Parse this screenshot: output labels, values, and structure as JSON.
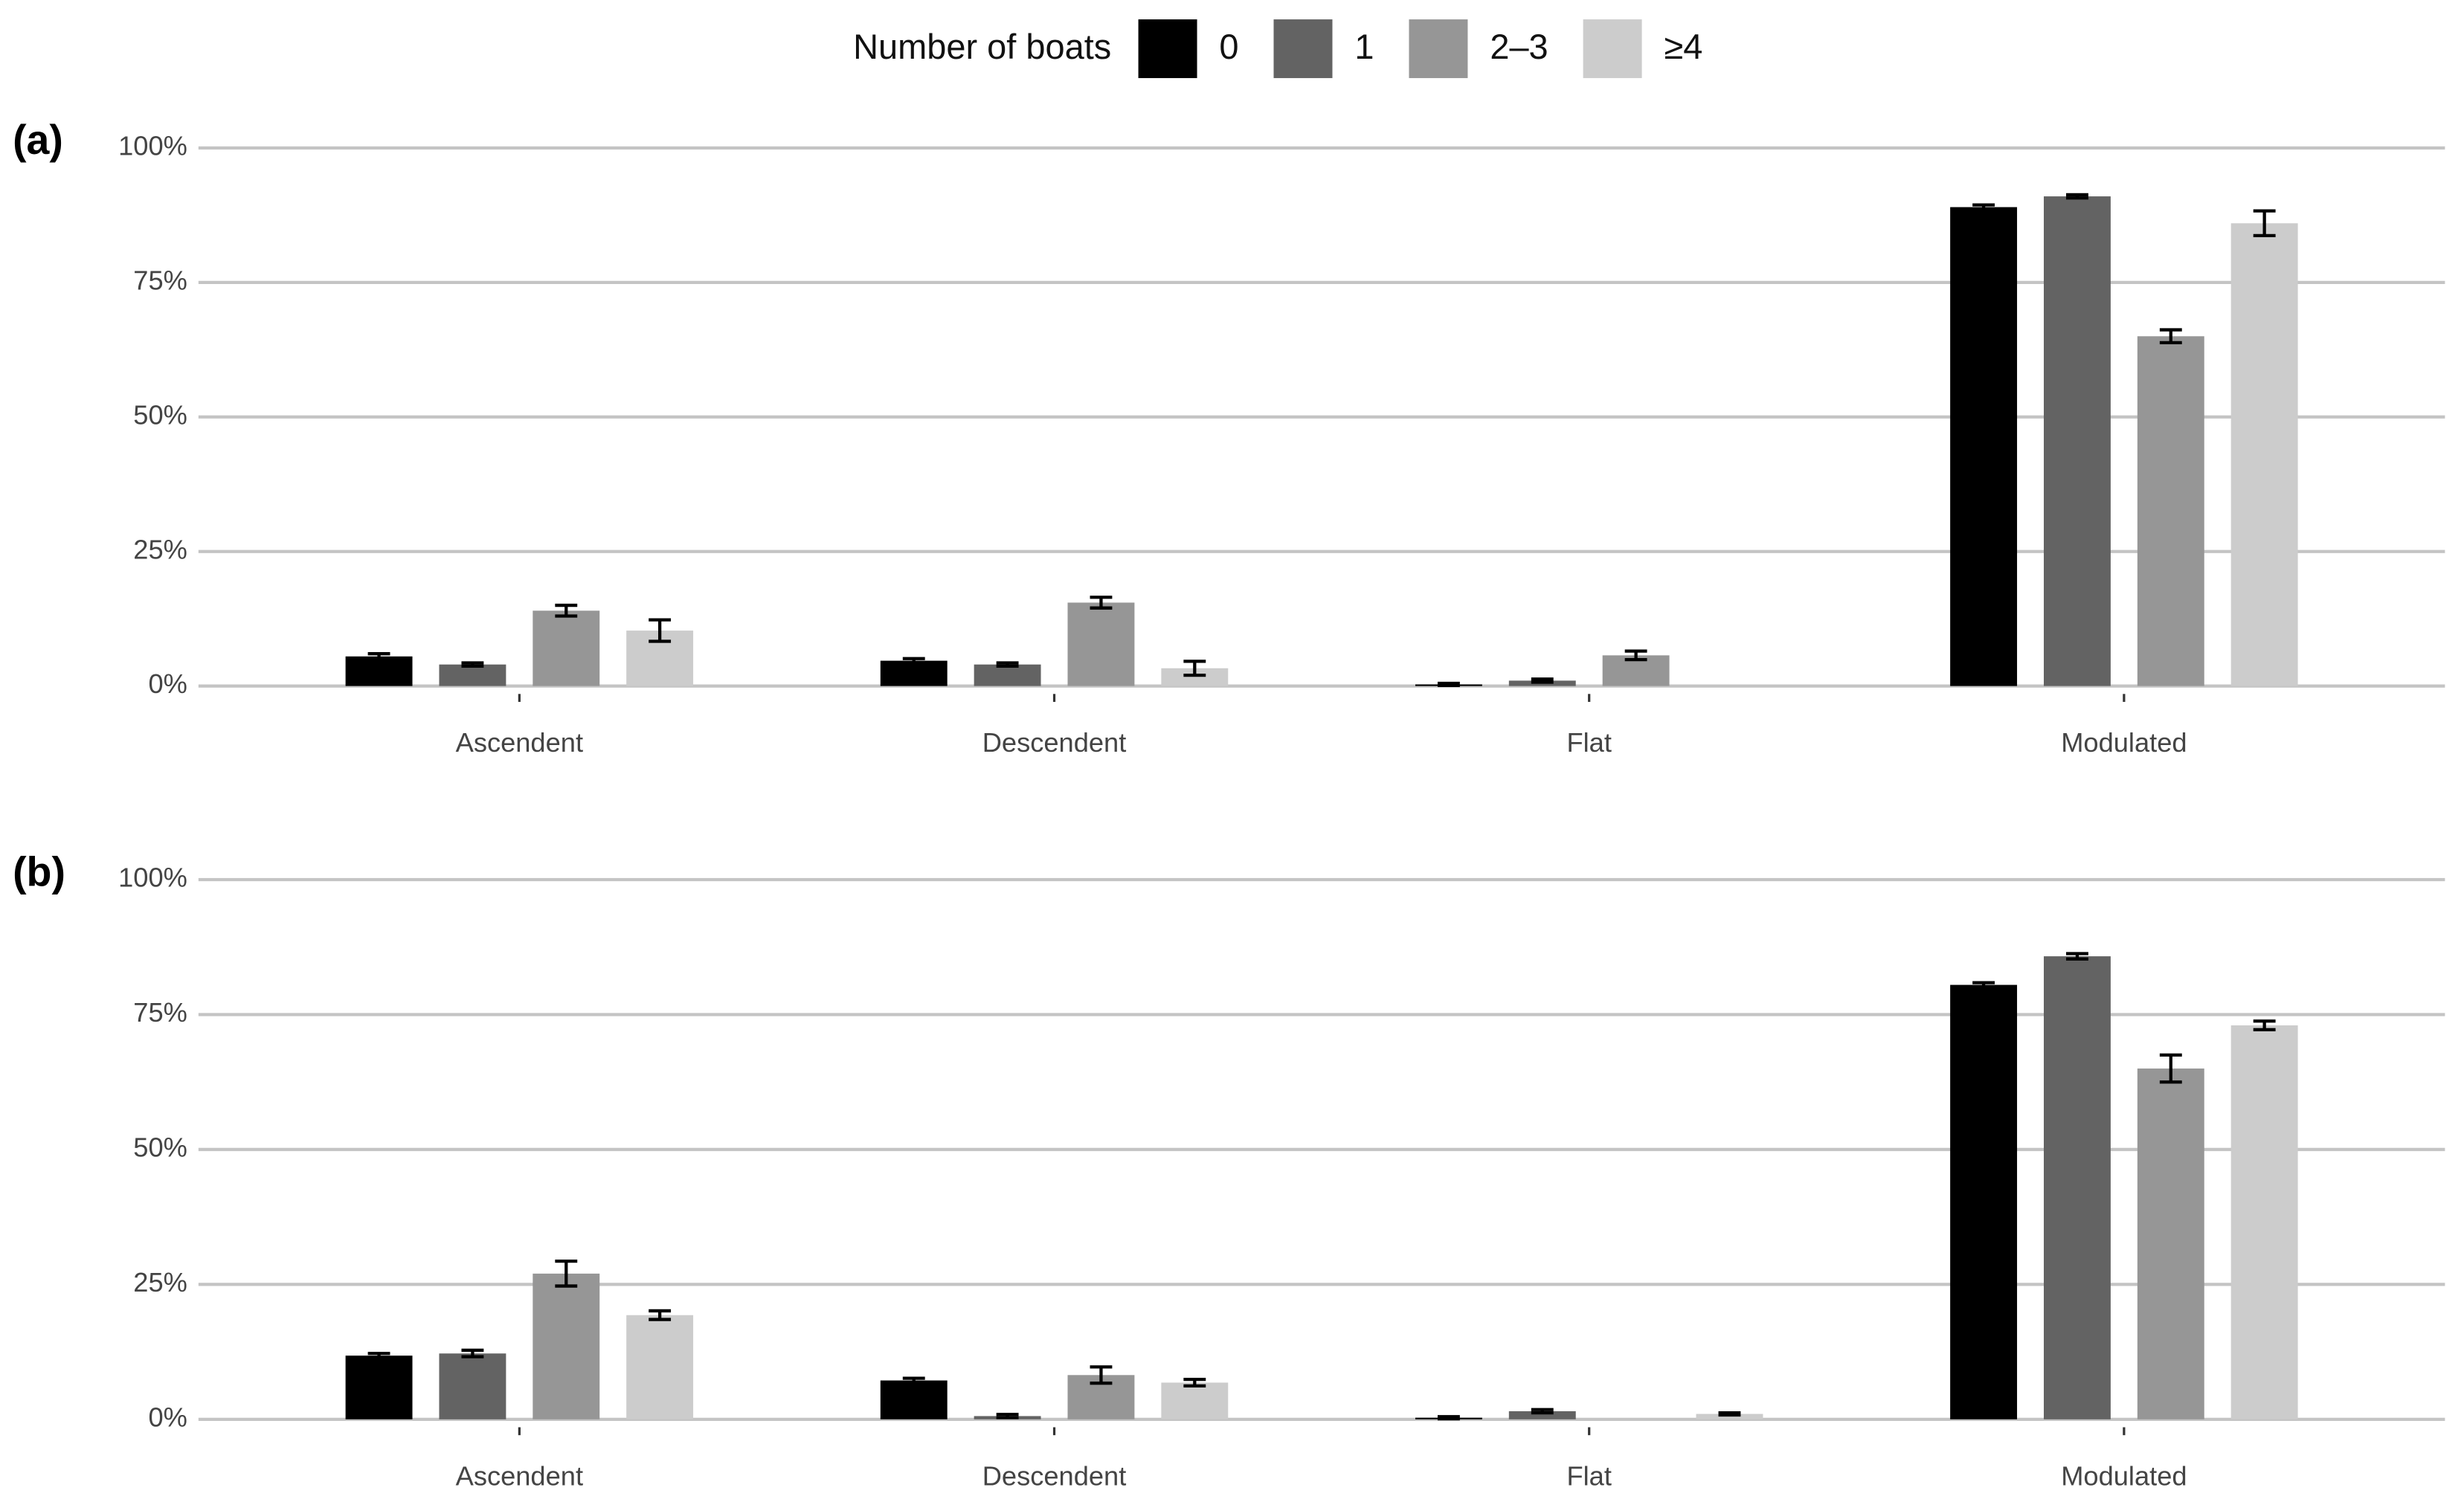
{
  "chart_data": [
    {
      "type": "bar",
      "panel_label": "(a)",
      "legend_title": "Number of boats",
      "categories": [
        "Ascendent",
        "Descendent",
        "Flat",
        "Modulated"
      ],
      "series": [
        {
          "name": "0",
          "color": "#000000",
          "values": [
            5.5,
            4.7,
            0.3,
            89
          ],
          "errors": [
            0.5,
            0.4,
            0.2,
            0.4
          ]
        },
        {
          "name": "1",
          "color": "#636363",
          "values": [
            4,
            4,
            1,
            91
          ],
          "errors": [
            0.3,
            0.3,
            0.3,
            0.3
          ]
        },
        {
          "name": "2–3",
          "color": "#969696",
          "values": [
            14,
            15.5,
            5.7,
            65
          ],
          "errors": [
            1,
            1,
            0.8,
            1.2
          ]
        },
        {
          "name": "≥4",
          "color": "#cccccc",
          "values": [
            10.3,
            3.3,
            null,
            86
          ],
          "errors": [
            2,
            1.3,
            null,
            2.3
          ]
        }
      ],
      "ylim": [
        0,
        100
      ],
      "yticks": [
        {
          "value": 0,
          "label": "0%"
        },
        {
          "value": 25,
          "label": "25%"
        },
        {
          "value": 50,
          "label": "50%"
        },
        {
          "value": 75,
          "label": "75%"
        },
        {
          "value": 100,
          "label": "100%"
        }
      ],
      "grid": true
    },
    {
      "type": "bar",
      "panel_label": "(b)",
      "categories": [
        "Ascendent",
        "Descendent",
        "Flat",
        "Modulated"
      ],
      "series": [
        {
          "name": "0",
          "color": "#000000",
          "values": [
            11.8,
            7.2,
            0.3,
            80.5
          ],
          "errors": [
            0.4,
            0.4,
            0.2,
            0.4
          ]
        },
        {
          "name": "1",
          "color": "#636363",
          "values": [
            12.2,
            0.6,
            1.5,
            85.8
          ],
          "errors": [
            0.6,
            0.3,
            0.3,
            0.5
          ]
        },
        {
          "name": "2–3",
          "color": "#969696",
          "values": [
            27,
            8.2,
            null,
            65
          ],
          "errors": [
            2.3,
            1.5,
            null,
            2.5
          ]
        },
        {
          "name": "≥4",
          "color": "#cccccc",
          "values": [
            19.3,
            6.8,
            1,
            73
          ],
          "errors": [
            0.8,
            0.6,
            0.2,
            0.8
          ]
        }
      ],
      "ylim": [
        0,
        100
      ],
      "yticks": [
        {
          "value": 0,
          "label": "0%"
        },
        {
          "value": 25,
          "label": "25%"
        },
        {
          "value": 50,
          "label": "50%"
        },
        {
          "value": 75,
          "label": "75%"
        },
        {
          "value": 100,
          "label": "100%"
        }
      ],
      "grid": true
    }
  ]
}
